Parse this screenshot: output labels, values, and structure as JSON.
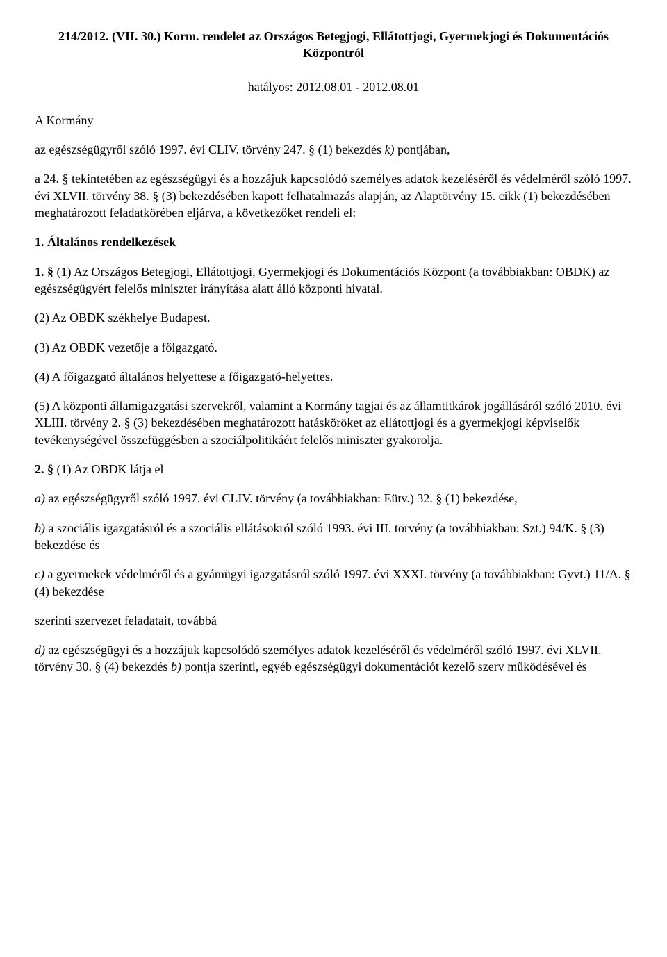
{
  "title": "214/2012. (VII. 30.) Korm. rendelet az Országos Betegjogi, Ellátottjogi, Gyermekjogi és Dokumentációs Központról",
  "effective": "hatályos: 2012.08.01 - 2012.08.01",
  "intro1": "A Kormány",
  "intro2_pre": "az egészségügyről szóló 1997. évi CLIV. törvény 247. § (1) bekezdés ",
  "intro2_k": "k)",
  "intro2_post": " pontjában,",
  "intro3": "a 24. § tekintetében az egészségügyi és a hozzájuk kapcsolódó személyes adatok kezeléséről és védelméről szóló 1997. évi XLVII. törvény 38. § (3) bekezdésében kapott felhatalmazás alapján, az Alaptörvény 15. cikk (1) bekezdésében meghatározott feladatkörében eljárva, a következőket rendeli el:",
  "heading1": "1. Általános rendelkezések",
  "p1_num": "1. §",
  "p1_body": " (1) Az Országos Betegjogi, Ellátottjogi, Gyermekjogi és Dokumentációs Központ (a továbbiakban: OBDK) az egészségügyért felelős miniszter irányítása alatt álló központi hivatal.",
  "p2": "(2) Az OBDK székhelye Budapest.",
  "p3": "(3) Az OBDK vezetője a főigazgató.",
  "p4": "(4) A főigazgató általános helyettese a főigazgató-helyettes.",
  "p5": "(5) A központi államigazgatási szervekről, valamint a Kormány tagjai és az államtitkárok jogállásáról szóló 2010. évi XLIII. törvény 2. § (3) bekezdésében meghatározott hatásköröket az ellátottjogi és a gyermekjogi képviselők tevékenységével összefüggésben a szociálpolitikáért felelős miniszter gyakorolja.",
  "p6_num": "2. §",
  "p6_body": " (1) Az OBDK látja el",
  "p7_a": "a)",
  "p7_body": " az egészségügyről szóló 1997. évi CLIV. törvény (a továbbiakban: Eütv.) 32. § (1) bekezdése,",
  "p8_b": "b)",
  "p8_body": " a szociális igazgatásról és a szociális ellátásokról szóló 1993. évi III. törvény (a továbbiakban: Szt.) 94/K. § (3) bekezdése és",
  "p9_c": "c)",
  "p9_body": " a gyermekek védelméről és a gyámügyi igazgatásról szóló 1997. évi XXXI. törvény (a továbbiakban: Gyvt.) 11/A. § (4) bekezdése",
  "p10": "szerinti szervezet feladatait, továbbá",
  "p11_d": "d)",
  "p11_body_pre": " az egészségügyi és a hozzájuk kapcsolódó személyes adatok kezeléséről és védelméről szóló 1997. évi XLVII. törvény 30. § (4) bekezdés ",
  "p11_b": "b)",
  "p11_body_post": " pontja szerinti, egyéb egészségügyi dokumentációt kezelő szerv működésével és"
}
